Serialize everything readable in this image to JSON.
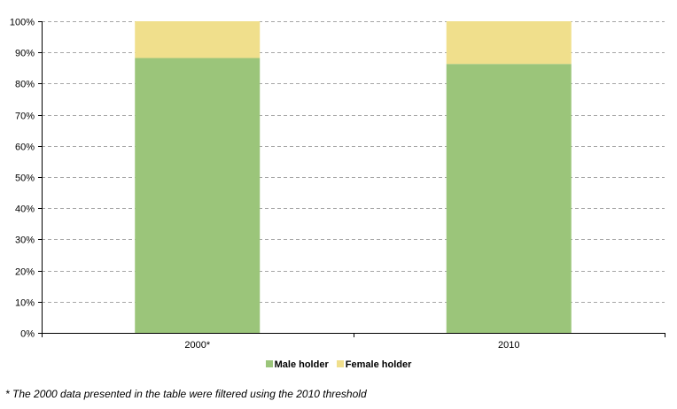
{
  "chart_data": {
    "type": "bar",
    "stacked": true,
    "categories": [
      "2000*",
      "2010"
    ],
    "series": [
      {
        "name": "Male holder",
        "values": [
          88.2,
          86.3
        ],
        "color": "#9bc57a"
      },
      {
        "name": "Female holder",
        "values": [
          11.8,
          13.7
        ],
        "color": "#f0df8c"
      }
    ],
    "ylim": [
      0,
      100
    ],
    "yticks": [
      "0%",
      "10%",
      "20%",
      "30%",
      "40%",
      "50%",
      "60%",
      "70%",
      "80%",
      "90%",
      "100%"
    ],
    "grid": true,
    "legend": "bottom"
  },
  "legend": {
    "male": "Male holder",
    "female": "Female holder"
  },
  "footnote": "* The 2000 data presented in the table were filtered using the 2010 threshold"
}
